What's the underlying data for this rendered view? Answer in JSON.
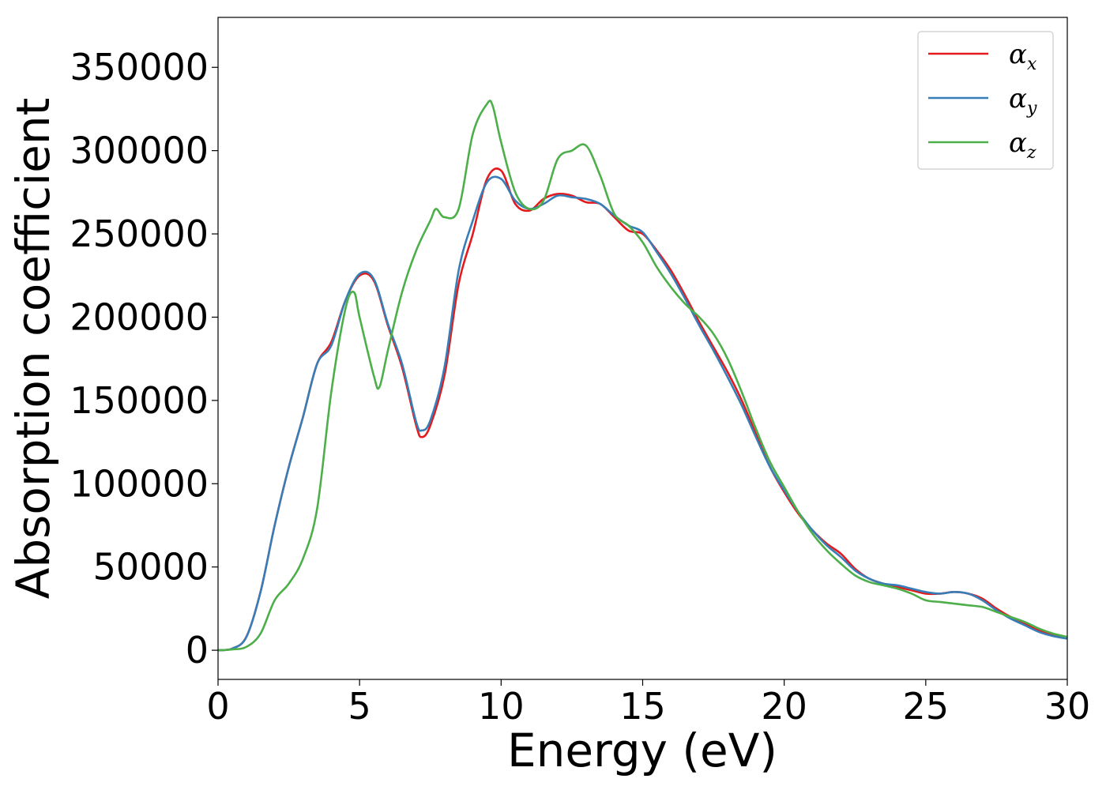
{
  "chart_data": {
    "type": "line",
    "title": "",
    "xlabel": "Energy (eV)",
    "ylabel": "Absorption coefficient",
    "xlim": [
      0,
      30
    ],
    "ylim": [
      -17500,
      380000
    ],
    "xticks": [
      0,
      5,
      10,
      15,
      20,
      25,
      30
    ],
    "xtick_labels": [
      "0",
      "5",
      "10",
      "15",
      "20",
      "25",
      "30"
    ],
    "yticks": [
      0,
      50000,
      100000,
      150000,
      200000,
      250000,
      300000,
      350000
    ],
    "ytick_labels": [
      "0",
      "50000",
      "100000",
      "150000",
      "200000",
      "250000",
      "300000",
      "350000"
    ],
    "grid": false,
    "legend_position": "top-right",
    "series": [
      {
        "name": "αx",
        "legend_base": "α",
        "legend_sub": "x",
        "color": "#e41a1c",
        "x": [
          0,
          0.5,
          1.0,
          1.5,
          2.0,
          2.5,
          3.0,
          3.5,
          4.0,
          4.5,
          5.0,
          5.5,
          6.0,
          6.5,
          7.0,
          7.2,
          7.5,
          8.0,
          8.5,
          9.0,
          9.5,
          10.0,
          10.5,
          11.0,
          11.5,
          12.0,
          12.5,
          13.0,
          13.5,
          14.0,
          14.5,
          15.0,
          15.5,
          16.0,
          16.5,
          17.0,
          17.5,
          18.0,
          18.5,
          19.0,
          19.5,
          20.0,
          20.5,
          21.0,
          21.5,
          22.0,
          22.5,
          23.0,
          23.5,
          24.0,
          24.5,
          25.0,
          25.5,
          26.0,
          26.5,
          27.0,
          27.5,
          28.0,
          28.5,
          29.0,
          29.5,
          30.0
        ],
        "y": [
          0,
          1000,
          8000,
          35000,
          75000,
          110000,
          140000,
          172000,
          185000,
          210000,
          225000,
          222000,
          195000,
          170000,
          135000,
          128000,
          135000,
          165000,
          220000,
          250000,
          283000,
          288000,
          268000,
          264000,
          271000,
          274000,
          273000,
          269000,
          268000,
          260000,
          252000,
          250000,
          240000,
          228000,
          213000,
          197000,
          182000,
          167000,
          150000,
          130000,
          110000,
          95000,
          82000,
          72000,
          64000,
          58000,
          49000,
          43000,
          40000,
          38000,
          36000,
          34000,
          34000,
          35000,
          34000,
          31000,
          25000,
          20000,
          16000,
          12000,
          9000,
          7000
        ]
      },
      {
        "name": "αy",
        "legend_base": "α",
        "legend_sub": "y",
        "color": "#377eb8",
        "x": [
          0,
          0.5,
          1.0,
          1.5,
          2.0,
          2.5,
          3.0,
          3.5,
          4.0,
          4.5,
          5.0,
          5.5,
          6.0,
          6.5,
          7.0,
          7.2,
          7.5,
          8.0,
          8.5,
          9.0,
          9.5,
          10.0,
          10.5,
          11.0,
          11.5,
          12.0,
          12.5,
          13.0,
          13.5,
          14.0,
          14.5,
          15.0,
          15.5,
          16.0,
          16.5,
          17.0,
          17.5,
          18.0,
          18.5,
          19.0,
          19.5,
          20.0,
          20.5,
          21.0,
          21.5,
          22.0,
          22.5,
          23.0,
          23.5,
          24.0,
          24.5,
          25.0,
          25.5,
          26.0,
          26.5,
          27.0,
          27.5,
          28.0,
          28.5,
          29.0,
          29.5,
          30.0
        ],
        "y": [
          0,
          1000,
          8000,
          35000,
          75000,
          110000,
          140000,
          172000,
          183000,
          210000,
          226000,
          223000,
          196000,
          172000,
          137000,
          132000,
          138000,
          170000,
          228000,
          258000,
          281000,
          283000,
          270000,
          265000,
          268000,
          273000,
          272000,
          271000,
          268000,
          261000,
          255000,
          251000,
          239000,
          226000,
          211000,
          195000,
          180000,
          164000,
          147000,
          128000,
          110000,
          96000,
          83000,
          72000,
          63000,
          56000,
          48000,
          43000,
          40000,
          39000,
          37000,
          35000,
          34000,
          35000,
          34000,
          30000,
          24000,
          19000,
          15000,
          11000,
          8500,
          7000
        ]
      },
      {
        "name": "αz",
        "legend_base": "α",
        "legend_sub": "z",
        "color": "#4daf4a",
        "x": [
          0,
          0.5,
          1.0,
          1.5,
          2.0,
          2.5,
          3.0,
          3.5,
          4.0,
          4.5,
          4.8,
          5.0,
          5.5,
          5.7,
          6.0,
          6.5,
          7.0,
          7.5,
          7.7,
          8.0,
          8.5,
          9.0,
          9.5,
          9.7,
          10.0,
          10.5,
          11.0,
          11.5,
          12.0,
          12.5,
          13.0,
          13.5,
          14.0,
          14.5,
          15.0,
          15.5,
          16.0,
          16.5,
          17.0,
          17.5,
          18.0,
          18.5,
          19.0,
          19.5,
          20.0,
          20.5,
          21.0,
          21.5,
          22.0,
          22.5,
          23.0,
          23.5,
          24.0,
          24.5,
          25.0,
          25.5,
          26.0,
          26.5,
          27.0,
          27.5,
          28.0,
          28.5,
          29.0,
          29.5,
          30.0
        ],
        "y": [
          0,
          500,
          2000,
          10000,
          30000,
          40000,
          55000,
          85000,
          155000,
          205000,
          215000,
          200000,
          165000,
          158000,
          180000,
          215000,
          240000,
          258000,
          265000,
          260000,
          265000,
          310000,
          328000,
          327000,
          305000,
          275000,
          265000,
          270000,
          295000,
          300000,
          303000,
          285000,
          262000,
          255000,
          245000,
          230000,
          218000,
          208000,
          200000,
          190000,
          175000,
          155000,
          133000,
          113000,
          98000,
          83000,
          70000,
          60000,
          52000,
          45000,
          41000,
          39000,
          37000,
          34000,
          30000,
          29000,
          28000,
          27000,
          26000,
          23000,
          20000,
          17000,
          13000,
          10000,
          8000
        ]
      }
    ]
  }
}
